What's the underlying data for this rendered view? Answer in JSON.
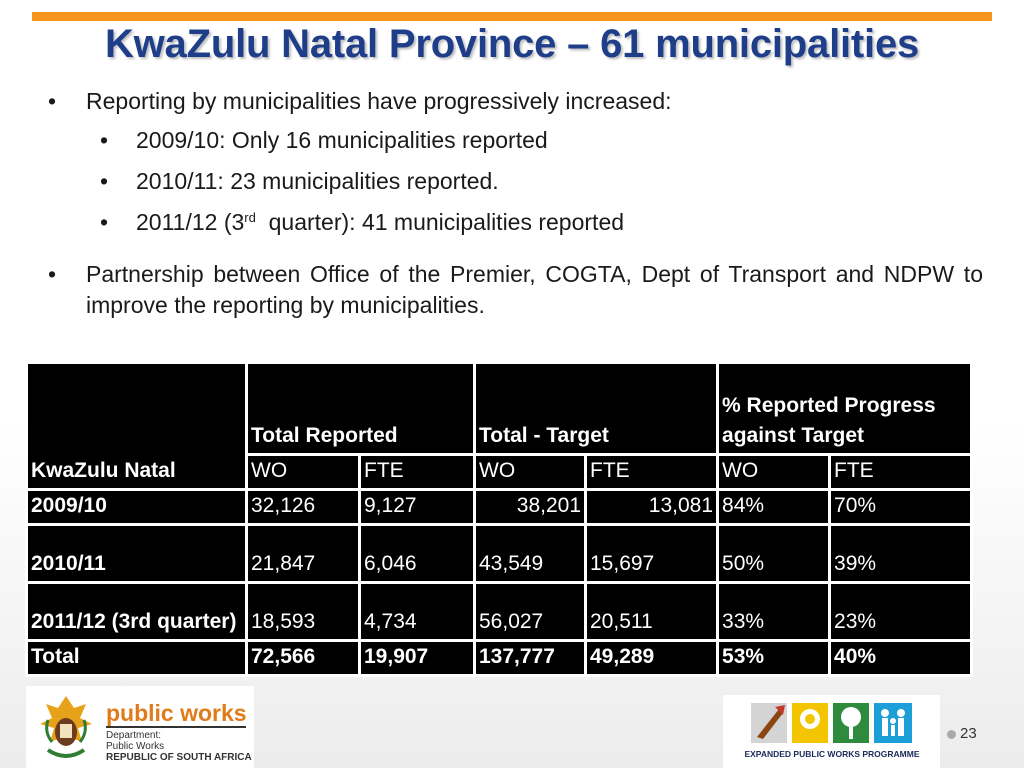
{
  "title": "KwaZulu Natal Province – 61 municipalities",
  "bullets": {
    "first": "Reporting by municipalities have progressively increased:",
    "sub": [
      "2009/10: Only 16 municipalities reported",
      "2010/11: 23 municipalities reported."
    ],
    "sub3": {
      "before": "2011/12 (3",
      "sup": "rd",
      "after": "  quarter): 41 municipalities reported"
    },
    "second": "Partnership between Office of the Premier, COGTA, Dept of Transport and NDPW to improve the reporting by municipalities."
  },
  "table": {
    "region_label": "KwaZulu Natal",
    "group_headers": [
      "Total Reported",
      "Total - Target",
      "% Reported Progress against Target"
    ],
    "sub_headers": [
      "WO",
      "FTE",
      "WO",
      "FTE",
      "WO",
      "FTE"
    ],
    "rows": [
      {
        "label": "2009/10",
        "cells": [
          "32,126",
          "9,127",
          "38,201",
          "13,081",
          "84%",
          "70%"
        ]
      },
      {
        "label": "2010/11",
        "cells": [
          "21,847",
          "6,046",
          "43,549",
          "15,697",
          "50%",
          "39%"
        ]
      },
      {
        "label": "2011/12 (3rd quarter)",
        "cells": [
          "18,593",
          "4,734",
          "56,027",
          "20,511",
          "33%",
          "23%"
        ]
      },
      {
        "label": "Total",
        "cells": [
          "72,566",
          "19,907",
          "137,777",
          "49,289",
          "53%",
          "40%"
        ]
      }
    ]
  },
  "logo_left": {
    "brand": "public works",
    "dept_lines": [
      "Department:",
      "Public Works",
      "REPUBLIC OF SOUTH AFRICA"
    ]
  },
  "logo_right": {
    "caption": "EXPANDED PUBLIC WORKS PROGRAMME"
  },
  "page_number": "23",
  "colors": {
    "title": "#1f3e8a",
    "accent_bar": "#f7941d",
    "table_bg": "#000000",
    "brand_orange": "#e07b1a"
  }
}
